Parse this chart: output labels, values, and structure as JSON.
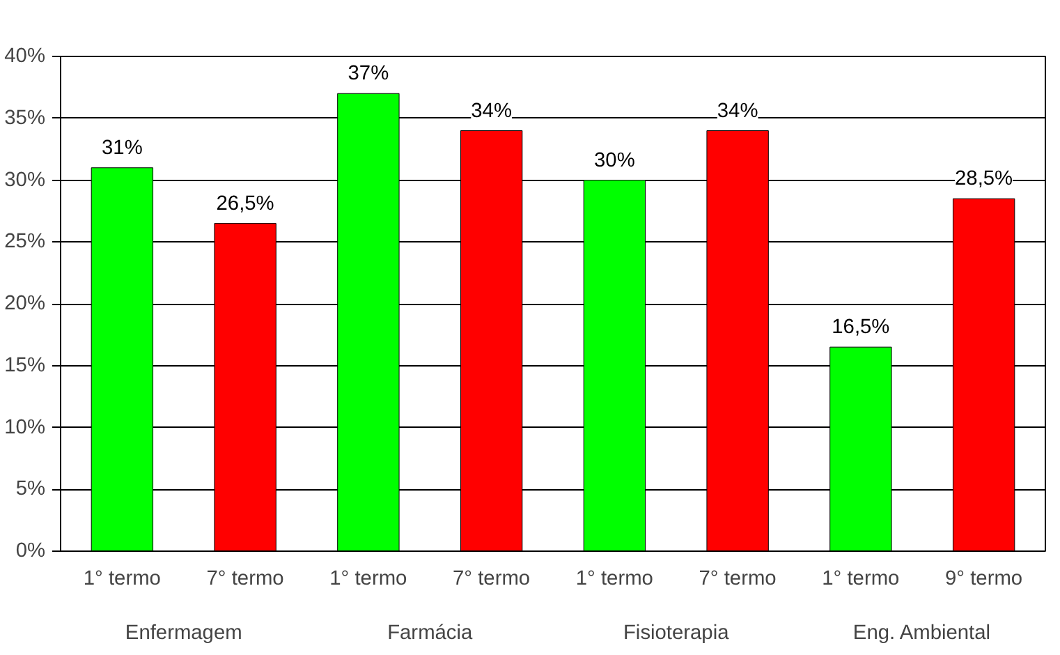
{
  "chart_data": {
    "type": "bar",
    "categories": [
      "1° termo",
      "7° termo",
      "1° termo",
      "7° termo",
      "1° termo",
      "7° termo",
      "1° termo",
      "9° termo"
    ],
    "values": [
      31,
      26.5,
      37,
      34,
      30,
      34,
      16.5,
      28.5
    ],
    "colors": [
      "#00ff00",
      "#ff0000",
      "#00ff00",
      "#ff0000",
      "#00ff00",
      "#ff0000",
      "#00ff00",
      "#ff0000"
    ],
    "value_labels": [
      "31%",
      "26,5%",
      "37%",
      "34%",
      "30%",
      "34%",
      "16,5%",
      "28,5%"
    ],
    "annotations": [
      "Enfermagem",
      "Farmácia",
      "Fisioterapia",
      "Eng. Ambiental"
    ],
    "ylim": [
      0,
      40
    ],
    "yticks": [
      {
        "value": 0,
        "label": "0%"
      },
      {
        "value": 5,
        "label": "5%"
      },
      {
        "value": 10,
        "label": "10%"
      },
      {
        "value": 15,
        "label": "15%"
      },
      {
        "value": 20,
        "label": "20%"
      },
      {
        "value": 25,
        "label": "25%"
      },
      {
        "value": 30,
        "label": "30%"
      },
      {
        "value": 35,
        "label": "35%"
      },
      {
        "value": 40,
        "label": "40%"
      }
    ],
    "grid": "y"
  }
}
